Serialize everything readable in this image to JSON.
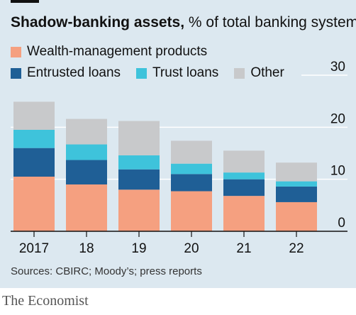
{
  "header": {
    "title": "Shadow-banking assets,",
    "subtitle": "% of total banking system"
  },
  "legend": {
    "wmp": "Wealth-management products",
    "entrusted": "Entrusted loans",
    "trust": "Trust loans",
    "other": "Other"
  },
  "colors": {
    "wmp": "#f5a080",
    "entrusted": "#1f5f96",
    "trust": "#3ec3db",
    "other": "#c8c9cb",
    "background": "#dce8f0",
    "grid": "#ffffff",
    "axis": "#111111"
  },
  "chart_data": {
    "type": "bar",
    "stacked": true,
    "categories": [
      "2017",
      "18",
      "19",
      "20",
      "21",
      "22"
    ],
    "series": [
      {
        "name": "Wealth-management products",
        "key": "wmp",
        "values": [
          10.5,
          9.0,
          8.0,
          7.7,
          6.8,
          5.6
        ]
      },
      {
        "name": "Entrusted loans",
        "key": "entrusted",
        "values": [
          5.5,
          4.7,
          3.9,
          3.3,
          3.2,
          3.0
        ]
      },
      {
        "name": "Trust loans",
        "key": "trust",
        "values": [
          3.5,
          3.0,
          2.7,
          2.0,
          1.3,
          1.0
        ]
      },
      {
        "name": "Other",
        "key": "other",
        "values": [
          5.4,
          4.9,
          6.6,
          4.4,
          4.2,
          3.6
        ]
      }
    ],
    "ylim": [
      0,
      30
    ],
    "yticks": [
      0,
      10,
      20,
      30
    ],
    "ytick_labels": [
      "0",
      "10",
      "20",
      "30"
    ],
    "xlabel": "",
    "ylabel": "",
    "grid": true
  },
  "footer": {
    "source": "Sources: CBIRC; Moody’s; press reports",
    "brand": "The Economist"
  }
}
